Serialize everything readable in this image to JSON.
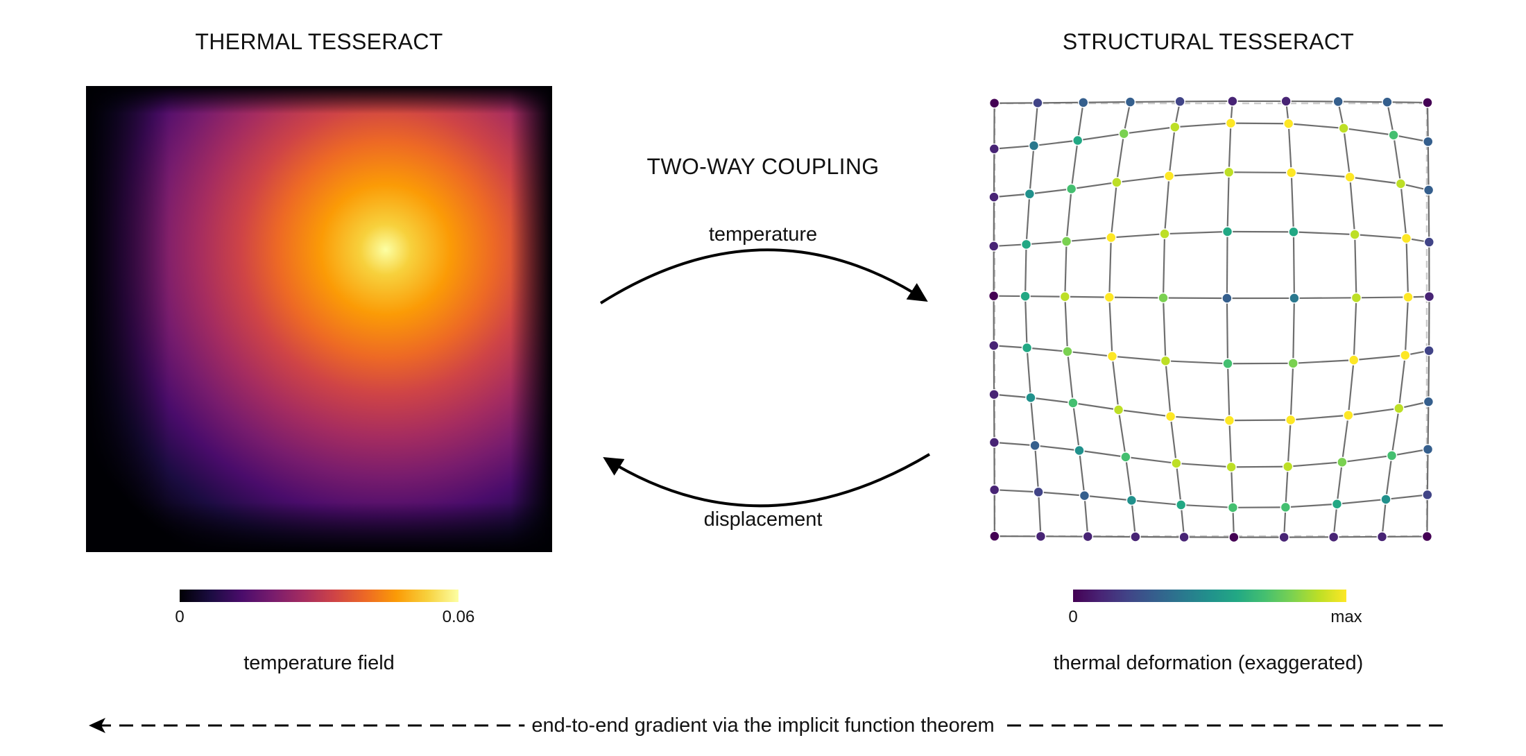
{
  "thermal": {
    "title": "THERMAL TESSERACT",
    "caption": "temperature field",
    "colorbar_min": "0",
    "colorbar_max": "0.06",
    "colormap": "inferno"
  },
  "structural": {
    "title": "STRUCTURAL TESSERACT",
    "caption": "thermal deformation (exaggerated)",
    "colorbar_min": "0",
    "colorbar_max": "max",
    "colormap": "viridis",
    "mesh_nodes": "10x10 grid",
    "node_color": "viridis by deformation magnitude",
    "undeformed_outline": "dashed gray"
  },
  "coupling": {
    "title": "TWO-WAY COUPLING",
    "forward_label": "temperature",
    "backward_label": "displacement"
  },
  "footer": {
    "text": "end-to-end gradient via the implicit function theorem"
  },
  "colors": {
    "arrow": "#000000",
    "mesh_line": "#6e6e6e",
    "dashed_outline": "#cccccc"
  }
}
